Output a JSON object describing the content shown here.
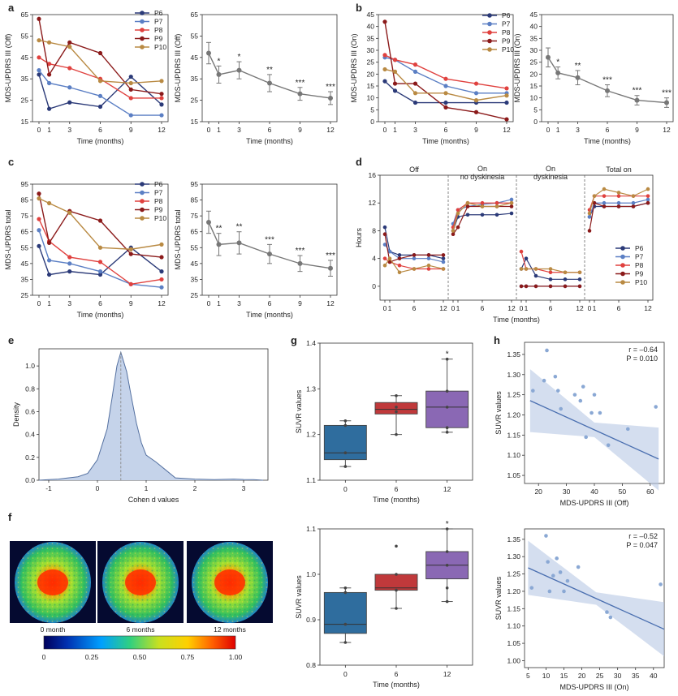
{
  "colors": {
    "P6": "#2b3a78",
    "P7": "#5b7fc4",
    "P8": "#e0413e",
    "P9": "#8b1a1a",
    "P10": "#b98a43",
    "mean": "#777777",
    "box0": "#2f6d9e",
    "box1": "#c0393b",
    "box2": "#8a68b4",
    "reg": "#4a6fb0",
    "band": "#b8c8e4",
    "kde": "#c5d3ea",
    "kdeLine": "#5470a0",
    "pt": "#8aa8d4"
  },
  "panel_labels": [
    "a",
    "b",
    "c",
    "d",
    "e",
    "f",
    "g",
    "h"
  ],
  "chart_data": [
    {
      "id": "a1",
      "panel": "a",
      "type": "line",
      "ylabel": "MDS-UPDRS III (Off)",
      "xlabel": "Time (months)",
      "x": [
        0,
        1,
        3,
        6,
        9,
        12
      ],
      "xticks": [
        0,
        1,
        3,
        6,
        9,
        12
      ],
      "ylim": [
        15,
        65
      ],
      "yticks": [
        15,
        25,
        35,
        45,
        55,
        65
      ],
      "legend": [
        "P6",
        "P7",
        "P8",
        "P9",
        "P10"
      ],
      "series": [
        {
          "name": "P6",
          "values": [
            37,
            21,
            24,
            22,
            36,
            23
          ]
        },
        {
          "name": "P7",
          "values": [
            39,
            33,
            31,
            27,
            18,
            18
          ]
        },
        {
          "name": "P8",
          "values": [
            45,
            42,
            40,
            35,
            26,
            26
          ]
        },
        {
          "name": "P9",
          "values": [
            63,
            37,
            52,
            47,
            30,
            28
          ]
        },
        {
          "name": "P10",
          "values": [
            53,
            52,
            50,
            34,
            33,
            34
          ]
        }
      ]
    },
    {
      "id": "a2",
      "panel": "a",
      "type": "line",
      "ylabel": "MDS-UPDRS III (Off)",
      "xlabel": "Time (months)",
      "x": [
        0,
        1,
        3,
        6,
        9,
        12
      ],
      "xticks": [
        0,
        1,
        3,
        6,
        9,
        12
      ],
      "ylim": [
        15,
        65
      ],
      "yticks": [
        15,
        25,
        35,
        45,
        55,
        65
      ],
      "series": [
        {
          "name": "",
          "values": [
            47,
            37,
            39,
            33,
            28,
            26
          ],
          "err": [
            5,
            4,
            4,
            4,
            3,
            3
          ]
        }
      ],
      "sig": [
        "",
        "*",
        "*",
        "**",
        "***",
        "***"
      ]
    },
    {
      "id": "b1",
      "panel": "b",
      "type": "line",
      "ylabel": "MDS-UPDRS III (On)",
      "xlabel": "Time (months)",
      "x": [
        0,
        1,
        3,
        6,
        9,
        12
      ],
      "xticks": [
        0,
        1,
        3,
        6,
        9,
        12
      ],
      "ylim": [
        0,
        45
      ],
      "yticks": [
        0,
        5,
        10,
        15,
        20,
        25,
        30,
        35,
        40,
        45
      ],
      "legend": [
        "P6",
        "P7",
        "P8",
        "P9",
        "P10"
      ],
      "series": [
        {
          "name": "P6",
          "values": [
            17,
            13,
            8,
            8,
            8,
            8
          ]
        },
        {
          "name": "P7",
          "values": [
            27,
            26,
            21,
            15,
            12,
            12
          ]
        },
        {
          "name": "P8",
          "values": [
            28,
            26,
            24,
            18,
            16,
            14
          ]
        },
        {
          "name": "P9",
          "values": [
            42,
            16,
            16,
            6,
            4,
            1
          ]
        },
        {
          "name": "P10",
          "values": [
            22,
            21,
            12,
            12,
            9,
            11
          ]
        }
      ]
    },
    {
      "id": "b2",
      "panel": "b",
      "type": "line",
      "ylabel": "MDS-UPDRS III (On)",
      "xlabel": "Time (months)",
      "x": [
        0,
        1,
        3,
        6,
        9,
        12
      ],
      "xticks": [
        0,
        1,
        3,
        6,
        9,
        12
      ],
      "ylim": [
        0,
        45
      ],
      "yticks": [
        0,
        5,
        10,
        15,
        20,
        25,
        30,
        35,
        40,
        45
      ],
      "series": [
        {
          "name": "",
          "values": [
            27,
            20.5,
            18.5,
            13,
            9,
            8
          ],
          "err": [
            4,
            2.5,
            3,
            2.5,
            2,
            2
          ]
        }
      ],
      "sig": [
        "",
        "*",
        "**",
        "***",
        "***",
        "***"
      ]
    },
    {
      "id": "c1",
      "panel": "c",
      "type": "line",
      "ylabel": "MDS-UPDRS total",
      "xlabel": "Time (months)",
      "x": [
        0,
        1,
        3,
        6,
        9,
        12
      ],
      "xticks": [
        0,
        1,
        3,
        6,
        9,
        12
      ],
      "ylim": [
        25,
        95
      ],
      "yticks": [
        25,
        35,
        45,
        55,
        65,
        75,
        85,
        95
      ],
      "legend": [
        "P6",
        "P7",
        "P8",
        "P9",
        "P10"
      ],
      "series": [
        {
          "name": "P6",
          "values": [
            56,
            38,
            40,
            38,
            55,
            40
          ]
        },
        {
          "name": "P7",
          "values": [
            66,
            47,
            45,
            40,
            32,
            30
          ]
        },
        {
          "name": "P8",
          "values": [
            73,
            59,
            49,
            46,
            32,
            35
          ]
        },
        {
          "name": "P9",
          "values": [
            89,
            58,
            78,
            72,
            51,
            49
          ]
        },
        {
          "name": "P10",
          "values": [
            86,
            83,
            77,
            55,
            54,
            57
          ]
        }
      ]
    },
    {
      "id": "c2",
      "panel": "c",
      "type": "line",
      "ylabel": "MDS-UPDRS total",
      "xlabel": "Time (months)",
      "x": [
        0,
        1,
        3,
        6,
        9,
        12
      ],
      "xticks": [
        0,
        1,
        3,
        6,
        9,
        12
      ],
      "ylim": [
        25,
        95
      ],
      "yticks": [
        25,
        35,
        45,
        55,
        65,
        75,
        85,
        95
      ],
      "series": [
        {
          "name": "",
          "values": [
            71,
            57,
            58,
            51,
            45,
            42
          ],
          "err": [
            7,
            7,
            7,
            6,
            5,
            5
          ]
        }
      ],
      "sig": [
        "",
        "**",
        "**",
        "***",
        "***",
        "***"
      ]
    },
    {
      "id": "d",
      "panel": "d",
      "type": "line",
      "ylabel": "Hours",
      "xlabel": "Time (months)",
      "ylim": [
        -2,
        16
      ],
      "yticks": [
        0,
        4,
        8,
        12,
        16
      ],
      "segments": [
        "Off",
        "On no dyskinesia",
        "On dyskinesia",
        "Total on"
      ],
      "xticks": [
        "0",
        "1",
        "6",
        "12",
        "0",
        "1",
        "6",
        "12",
        "0",
        "1",
        "6",
        "12",
        "0",
        "1",
        "6",
        "12"
      ],
      "x": [
        0,
        1,
        3,
        6,
        9,
        12
      ],
      "legend": [
        "P6",
        "P7",
        "P8",
        "P9",
        "P10"
      ],
      "series": [
        {
          "name": "P6",
          "off": [
            8.5,
            5,
            4.5,
            4.5,
            4.5,
            4
          ],
          "ond": [
            8,
            10,
            10.3,
            10.3,
            10.3,
            10.5
          ],
          "dys": [
            2.5,
            4,
            1.5,
            1,
            1,
            1
          ],
          "tot": [
            10,
            11.5,
            11.5,
            11.5,
            11.5,
            12
          ]
        },
        {
          "name": "P7",
          "off": [
            6,
            5,
            4,
            4,
            4,
            3.5
          ],
          "ond": [
            9,
            11,
            11.5,
            11.8,
            12,
            12.5
          ],
          "dys": [
            0,
            0,
            0,
            0,
            0,
            0
          ],
          "tot": [
            10,
            12,
            12,
            12,
            12,
            12.5
          ]
        },
        {
          "name": "P8",
          "off": [
            4,
            3.5,
            3,
            2.5,
            2.5,
            2.5
          ],
          "ond": [
            8.5,
            11,
            12,
            12,
            12,
            12
          ],
          "dys": [
            5,
            2.5,
            2.5,
            2,
            2,
            2
          ],
          "tot": [
            11,
            13,
            13,
            13,
            13,
            13
          ]
        },
        {
          "name": "P9",
          "off": [
            7.5,
            3.5,
            4,
            4.5,
            4.5,
            4.5
          ],
          "ond": [
            7.5,
            8.5,
            11.5,
            11.5,
            11.5,
            11.5
          ],
          "dys": [
            0,
            0,
            0,
            0,
            0,
            0
          ],
          "tot": [
            8,
            12,
            11.5,
            11.5,
            11.5,
            12
          ]
        },
        {
          "name": "P10",
          "off": [
            3,
            4,
            2,
            2.5,
            3,
            2.5
          ],
          "ond": [
            8,
            10.5,
            12,
            11.5,
            11.5,
            12
          ],
          "dys": [
            2.5,
            2.5,
            2.5,
            2.5,
            2,
            2
          ],
          "tot": [
            10.5,
            13,
            14,
            13.5,
            13,
            14
          ]
        }
      ]
    },
    {
      "id": "e",
      "panel": "e",
      "type": "area",
      "ylabel": "Density",
      "xlabel": "Cohen d values",
      "xlim": [
        -1.2,
        3.5
      ],
      "xticks": [
        -1,
        0,
        1,
        2,
        3
      ],
      "ylim": [
        0,
        1.15
      ],
      "yticks": [
        0,
        0.2,
        0.4,
        0.6,
        0.8,
        1.0
      ],
      "mean": 0.48,
      "x": [
        -1.2,
        -1.0,
        -0.8,
        -0.6,
        -0.4,
        -0.2,
        0.0,
        0.2,
        0.3,
        0.4,
        0.48,
        0.6,
        0.7,
        0.8,
        0.9,
        1.0,
        1.2,
        1.4,
        1.6,
        2.0,
        2.4,
        2.8,
        3.0,
        3.2,
        3.4
      ],
      "y": [
        0,
        0.005,
        0.01,
        0.02,
        0.03,
        0.06,
        0.18,
        0.45,
        0.72,
        1.0,
        1.12,
        0.95,
        0.72,
        0.5,
        0.33,
        0.22,
        0.16,
        0.09,
        0.02,
        0.01,
        0.005,
        0.01,
        0.006,
        0.005,
        0
      ]
    },
    {
      "id": "g1",
      "panel": "g",
      "type": "box",
      "ylabel": "SUVR values",
      "xlabel": "Time (months)",
      "categories": [
        "0",
        "6",
        "12"
      ],
      "ylim": [
        1.1,
        1.4
      ],
      "yticks": [
        1.1,
        1.2,
        1.3,
        1.4
      ],
      "boxes": [
        {
          "min": 1.13,
          "q1": 1.145,
          "median": 1.16,
          "q3": 1.22,
          "max": 1.23,
          "pts": [
            1.13,
            1.16,
            1.22,
            1.23
          ]
        },
        {
          "min": 1.2,
          "q1": 1.245,
          "median": 1.255,
          "q3": 1.27,
          "max": 1.285,
          "pts": [
            1.2,
            1.25,
            1.26,
            1.285
          ]
        },
        {
          "min": 1.205,
          "q1": 1.215,
          "median": 1.26,
          "q3": 1.295,
          "max": 1.365,
          "pts": [
            1.205,
            1.215,
            1.26,
            1.295,
            1.365
          ]
        }
      ],
      "sig": [
        "",
        "",
        "*"
      ]
    },
    {
      "id": "g2",
      "panel": "g",
      "type": "box",
      "ylabel": "SUVR values",
      "xlabel": "Time (months)",
      "categories": [
        "0",
        "6",
        "12"
      ],
      "ylim": [
        0.8,
        1.1
      ],
      "yticks": [
        0.8,
        0.9,
        1.0,
        1.1
      ],
      "boxes": [
        {
          "min": 0.85,
          "q1": 0.87,
          "median": 0.89,
          "q3": 0.96,
          "max": 0.97,
          "pts": [
            0.85,
            0.89,
            0.96,
            0.97
          ]
        },
        {
          "min": 0.925,
          "q1": 0.965,
          "median": 0.97,
          "q3": 1.0,
          "max": 1.0,
          "pts": [
            0.925,
            0.965,
            1.0,
            1.062
          ]
        },
        {
          "min": 0.94,
          "q1": 0.99,
          "median": 1.02,
          "q3": 1.05,
          "max": 1.1,
          "pts": [
            0.94,
            0.97,
            1.02,
            1.05,
            1.1
          ]
        }
      ],
      "sig": [
        "",
        "",
        "*"
      ]
    },
    {
      "id": "h1",
      "panel": "h",
      "type": "scatter",
      "ylabel": "SUVR values",
      "xlabel": "MDS-UPDRS III (Off)",
      "xlim": [
        15,
        65
      ],
      "xticks": [
        20,
        30,
        40,
        50,
        60
      ],
      "ylim": [
        1.03,
        1.38
      ],
      "yticks": [
        1.05,
        1.1,
        1.15,
        1.2,
        1.25,
        1.3,
        1.35
      ],
      "r": "r = –0.64",
      "p": "P = 0.010",
      "fit": [
        1.289,
        -0.00315
      ],
      "x": [
        18,
        22,
        23,
        26,
        27,
        28,
        33,
        35,
        36,
        37,
        39,
        40,
        42,
        45,
        52,
        62
      ],
      "y": [
        1.26,
        1.285,
        1.36,
        1.295,
        1.26,
        1.215,
        1.25,
        1.235,
        1.27,
        1.145,
        1.205,
        1.25,
        1.205,
        1.125,
        1.165,
        1.22
      ]
    },
    {
      "id": "h2",
      "panel": "h",
      "type": "scatter",
      "ylabel": "SUVR values",
      "xlabel": "MDS-UPDRS III (On)",
      "xlim": [
        4,
        43
      ],
      "xticks": [
        5,
        10,
        15,
        20,
        25,
        30,
        35,
        40
      ],
      "ylim": [
        0.98,
        1.38
      ],
      "yticks": [
        1.0,
        1.05,
        1.1,
        1.15,
        1.2,
        1.25,
        1.3,
        1.35
      ],
      "r": "r = –0.52",
      "p": "P = 0.047",
      "fit": [
        1.291,
        -0.00466
      ],
      "x": [
        6,
        10,
        10.5,
        11,
        12,
        13,
        14,
        15,
        16,
        19,
        27,
        28,
        42
      ],
      "y": [
        1.21,
        1.36,
        1.285,
        1.2,
        1.245,
        1.295,
        1.255,
        1.2,
        1.23,
        1.27,
        1.14,
        1.125,
        1.22
      ]
    }
  ],
  "images": {
    "labels": [
      "0 month",
      "6 months",
      "12 months"
    ],
    "colorbar_ticks": [
      "0",
      "0.25",
      "0.50",
      "0.75",
      "1.00"
    ]
  }
}
